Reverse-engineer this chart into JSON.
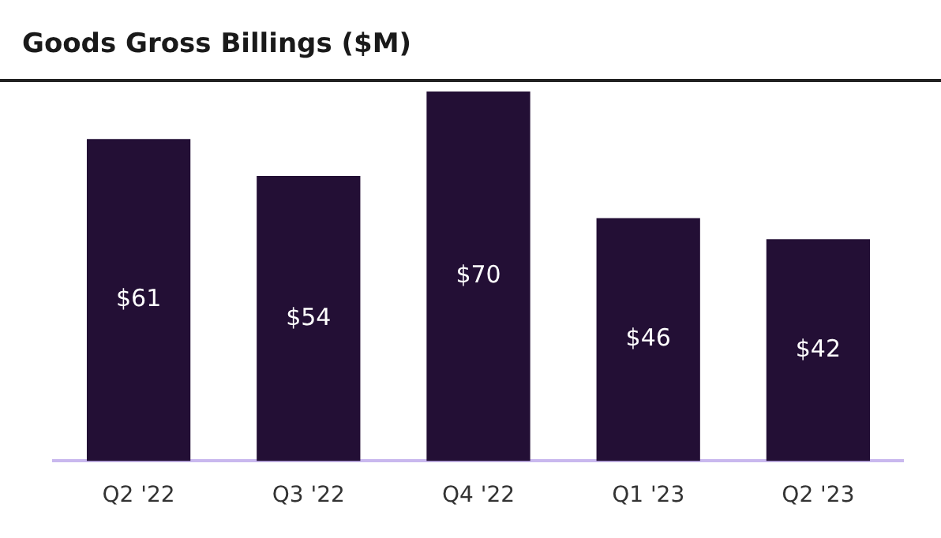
{
  "chart_data": {
    "type": "bar",
    "title": "Goods Gross Billings ($M)",
    "categories": [
      "Q2 '22",
      "Q3 '22",
      "Q4 '22",
      "Q1 '23",
      "Q2 '23"
    ],
    "values": [
      61,
      54,
      70,
      46,
      42
    ],
    "value_labels": [
      "$61",
      "$54",
      "$70",
      "$46",
      "$42"
    ],
    "color": "#230f35",
    "grid": false,
    "legend": false
  }
}
